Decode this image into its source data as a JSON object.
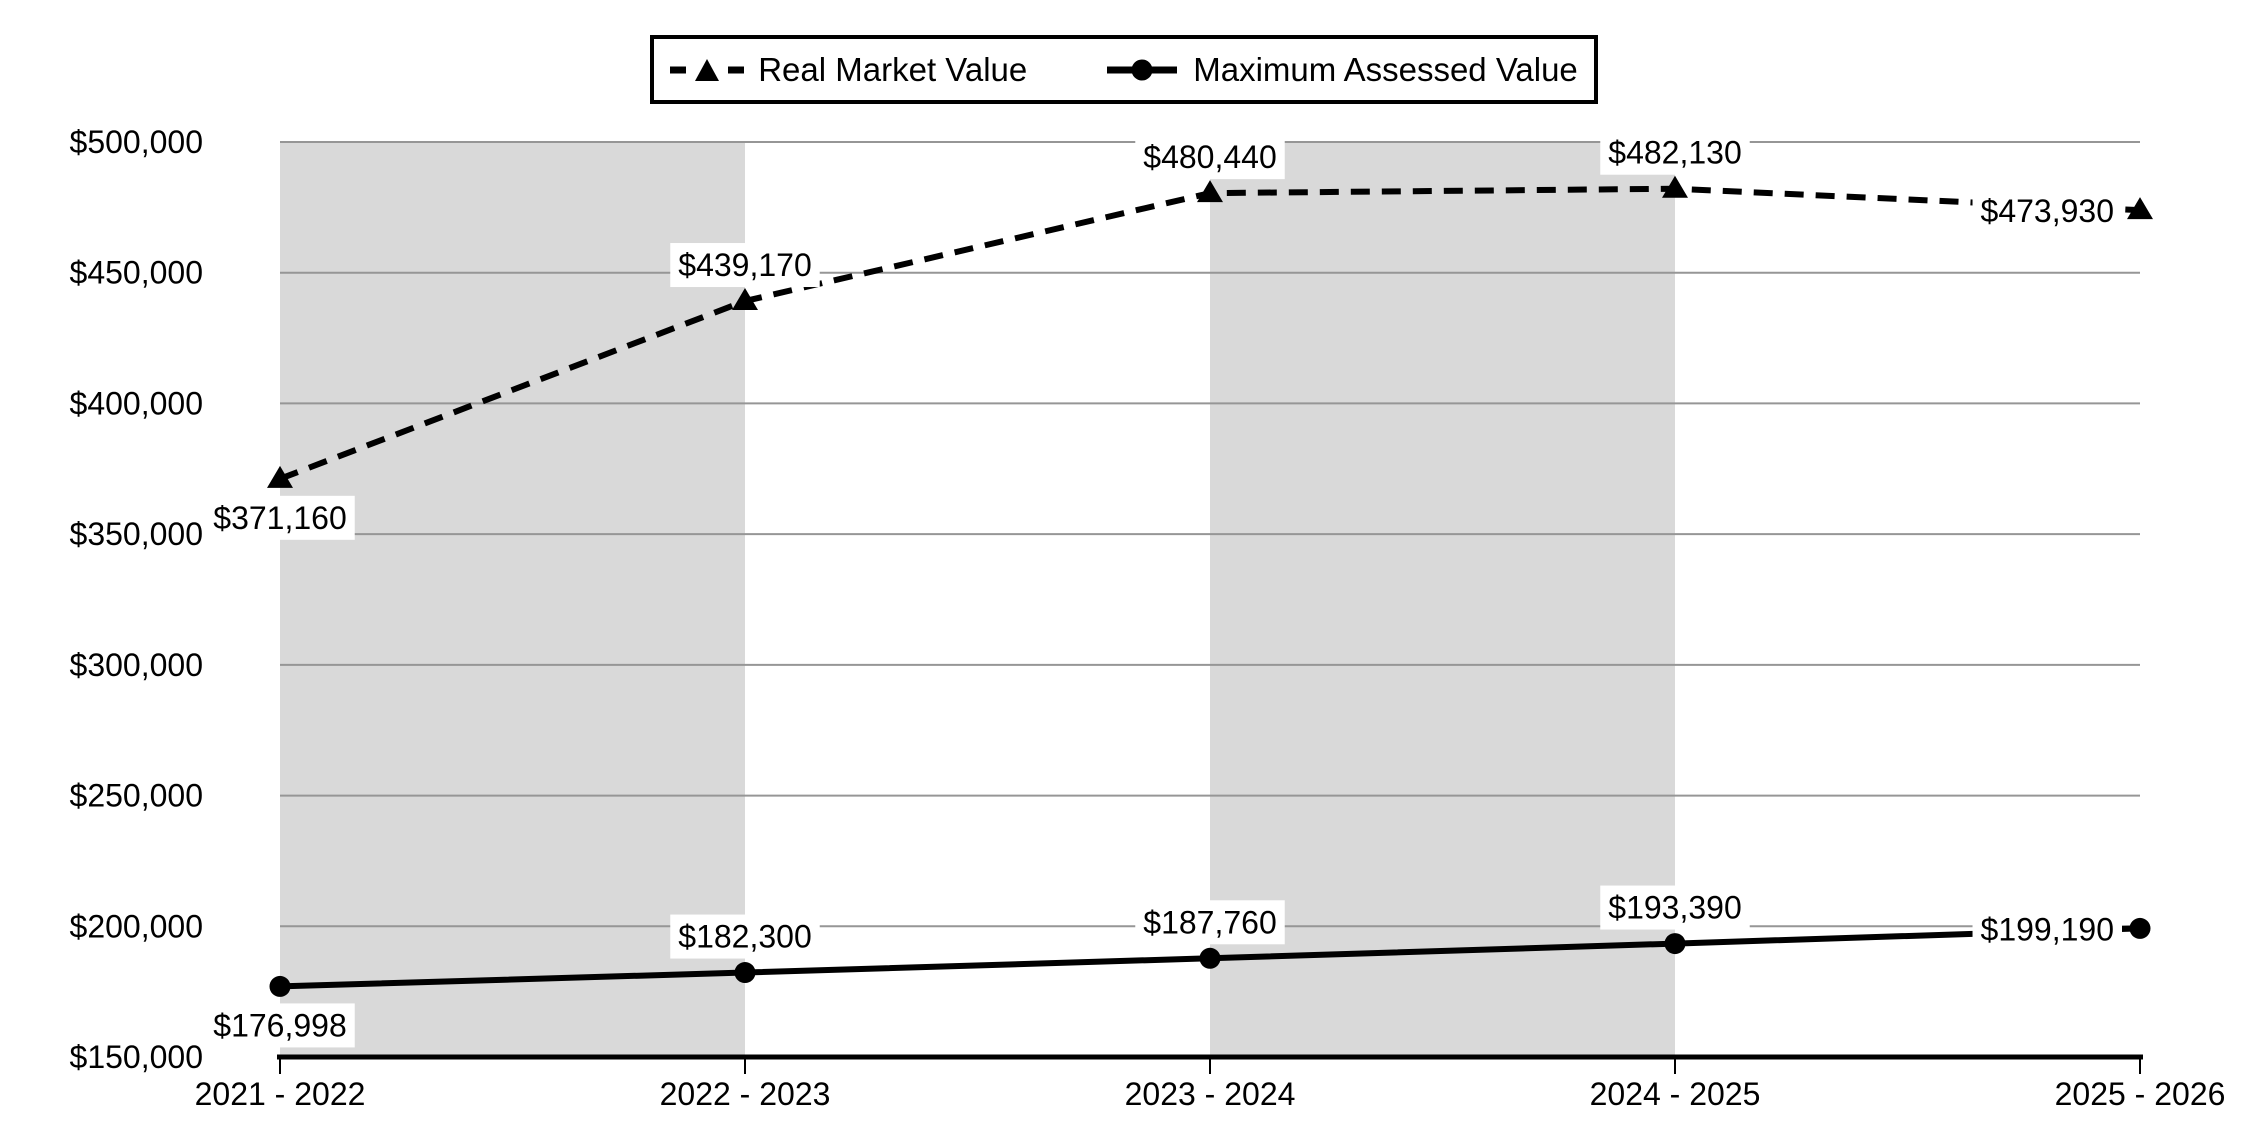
{
  "chart_data": {
    "type": "line",
    "title": "",
    "categories": [
      "2021 - 2022",
      "2022 - 2023",
      "2023 - 2024",
      "2024 - 2025",
      "2025 - 2026"
    ],
    "series": [
      {
        "name": "Real Market Value",
        "style": "dashed",
        "marker": "triangle",
        "values": [
          371160,
          439170,
          480440,
          482130,
          473930
        ],
        "labels": [
          "$371,160",
          "$439,170",
          "$480,440",
          "$482,130",
          "$473,930"
        ],
        "label_positions": [
          "below",
          "above",
          "above",
          "above",
          "left"
        ]
      },
      {
        "name": "Maximum Assessed Value",
        "style": "solid",
        "marker": "circle",
        "values": [
          176998,
          182300,
          187760,
          193390,
          199190
        ],
        "labels": [
          "$176,998",
          "$182,300",
          "$187,760",
          "$193,390",
          "$199,190"
        ],
        "label_positions": [
          "below",
          "above",
          "above",
          "above",
          "left"
        ]
      }
    ],
    "y_axis": {
      "min": 150000,
      "max": 500000,
      "step": 50000,
      "tick_labels": [
        "$150,000",
        "$200,000",
        "$250,000",
        "$300,000",
        "$350,000",
        "$400,000",
        "$450,000",
        "$500,000"
      ]
    },
    "x_axis": {
      "tick_labels": [
        "2021 - 2022",
        "2022 - 2023",
        "2023 - 2024",
        "2024 - 2025",
        "2025 - 2026"
      ]
    },
    "shaded_bands": [
      {
        "from": "2021 - 2022",
        "to": "2022 - 2023"
      },
      {
        "from": "2023 - 2024",
        "to": "2024 - 2025"
      }
    ],
    "legend_position": "top",
    "grid": true,
    "colors": {
      "line": "#000000",
      "band": "#d9d9d9",
      "gridline": "#969696",
      "background": "#ffffff",
      "label_background": "#ffffff",
      "text": "#000000"
    }
  }
}
